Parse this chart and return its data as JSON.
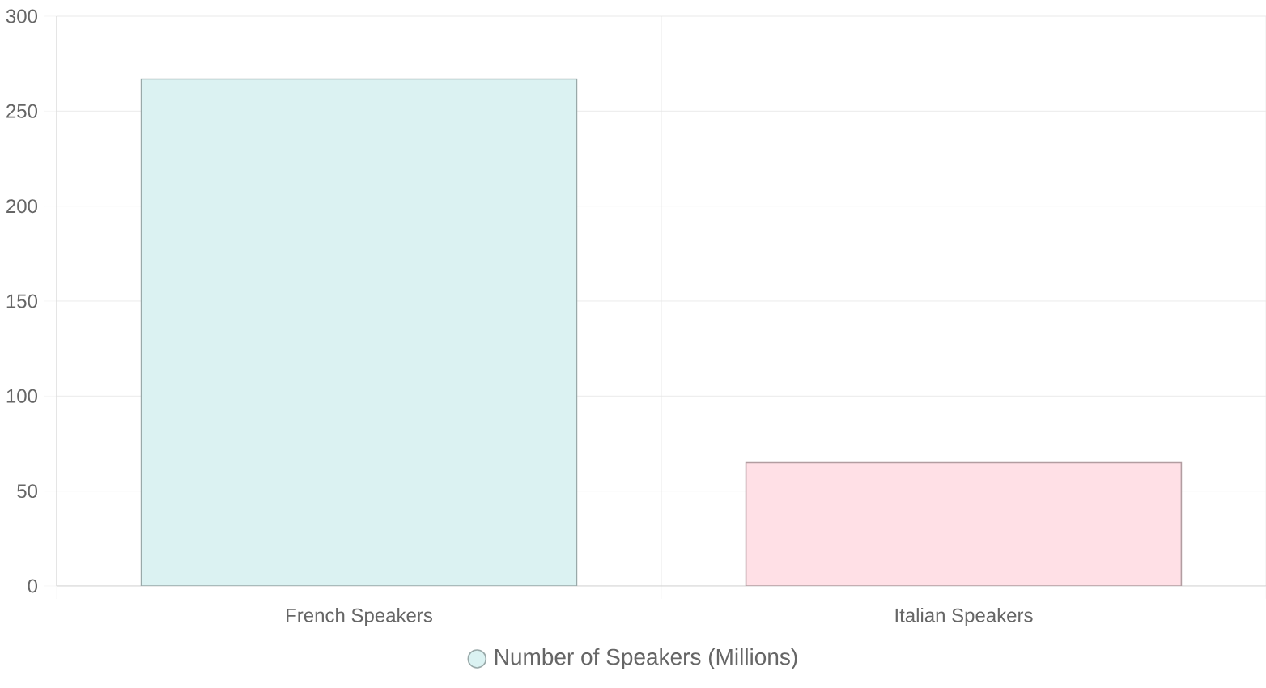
{
  "chart_data": {
    "type": "bar",
    "categories": [
      "French Speakers",
      "Italian Speakers"
    ],
    "series": [
      {
        "name": "Number of Speakers (Millions)",
        "colors": [
          "#dbf2f2",
          "#ffe0e6"
        ],
        "values": [
          267,
          65
        ]
      }
    ],
    "ylim": [
      0,
      300
    ],
    "yticks": [
      0,
      50,
      100,
      150,
      200,
      250,
      300
    ],
    "grid": true,
    "legend": "bottom"
  }
}
